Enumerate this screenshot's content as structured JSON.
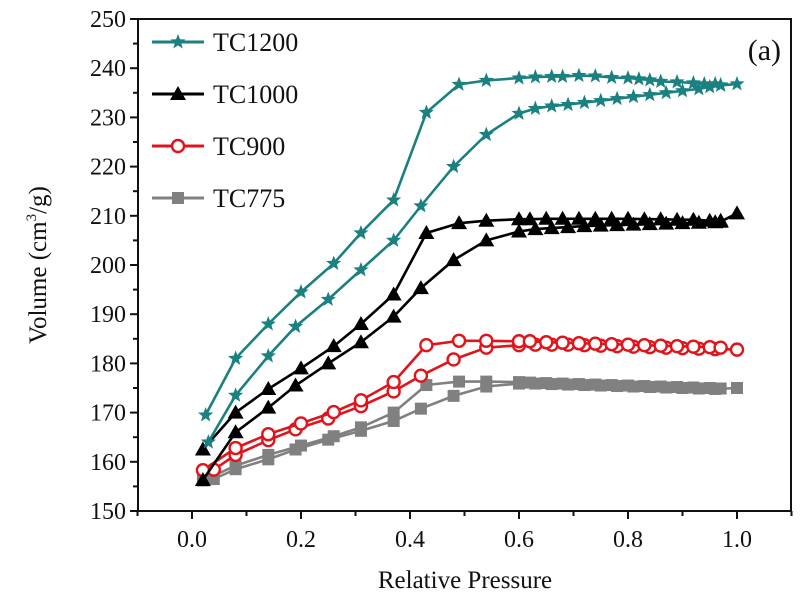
{
  "chart_data": {
    "type": "line",
    "title": "",
    "panel_label": "(a)",
    "xlabel": "Relative Pressure",
    "ylabel": "Volume (cm3/g)",
    "ylabel_parts": {
      "prefix": "Volume (cm",
      "sup": "3",
      "suffix": "/g)"
    },
    "xlim": [
      -0.1,
      1.1
    ],
    "ylim": [
      150,
      250
    ],
    "xticks": [
      0.0,
      0.2,
      0.4,
      0.6,
      0.8,
      1.0
    ],
    "xtick_labels": [
      "0.0",
      "0.2",
      "0.4",
      "0.6",
      "0.8",
      "1.0"
    ],
    "xminor": [
      -0.1,
      0.1,
      0.3,
      0.5,
      0.7,
      0.9,
      1.1
    ],
    "yticks": [
      150,
      160,
      170,
      180,
      190,
      200,
      210,
      220,
      230,
      240,
      250
    ],
    "ytick_labels": [
      "150",
      "160",
      "170",
      "180",
      "190",
      "200",
      "210",
      "220",
      "230",
      "240",
      "250"
    ],
    "yminor": [
      155,
      165,
      175,
      185,
      195,
      205,
      215,
      225,
      235,
      245
    ],
    "grid": false,
    "legend_position": "top-left",
    "series": [
      {
        "name": "TC1200",
        "color": "#1a8080",
        "marker": "star",
        "branches": [
          {
            "x": [
              0.03,
              0.08,
              0.14,
              0.19,
              0.25,
              0.31,
              0.37,
              0.42,
              0.48,
              0.54,
              0.6,
              0.63,
              0.66,
              0.69,
              0.72,
              0.75,
              0.78,
              0.81,
              0.84,
              0.87,
              0.9,
              0.93,
              0.95,
              0.97,
              1.0
            ],
            "y": [
              164,
              173.5,
              181.5,
              187.5,
              193,
              199,
              205,
              212,
              220,
              226.5,
              230.8,
              231.8,
              232.3,
              232.6,
              233,
              233.4,
              233.8,
              234.2,
              234.6,
              235,
              235.4,
              235.8,
              236.2,
              236.5,
              236.8
            ]
          },
          {
            "x": [
              0.025,
              0.08,
              0.14,
              0.2,
              0.26,
              0.31,
              0.37,
              0.43,
              0.49,
              0.54,
              0.6,
              0.63,
              0.66,
              0.68,
              0.71,
              0.74,
              0.77,
              0.8,
              0.82,
              0.84,
              0.86,
              0.89,
              0.92,
              0.94,
              0.96,
              0.97
            ],
            "y": [
              169.5,
              181,
              188,
              194.5,
              200.3,
              206.5,
              213.2,
              231,
              236.7,
              237.5,
              238,
              238.2,
              238.3,
              238.3,
              238.5,
              238.4,
              238.1,
              238,
              237.8,
              237.6,
              237.3,
              237.2,
              237,
              236.8,
              236.8,
              236.6
            ]
          }
        ]
      },
      {
        "name": "TC1000",
        "color": "#000000",
        "marker": "triangle",
        "branches": [
          {
            "x": [
              0.02,
              0.08,
              0.14,
              0.19,
              0.25,
              0.31,
              0.37,
              0.42,
              0.48,
              0.54,
              0.6,
              0.63,
              0.66,
              0.69,
              0.72,
              0.75,
              0.78,
              0.81,
              0.84,
              0.87,
              0.9,
              0.93,
              0.96,
              0.97,
              1.0
            ],
            "y": [
              156.3,
              166,
              171,
              175.5,
              180,
              184.3,
              189.5,
              195.3,
              201,
              205,
              206.8,
              207.3,
              207.5,
              207.7,
              207.9,
              208,
              208.1,
              208.2,
              208.3,
              208.4,
              208.5,
              208.6,
              208.7,
              208.8,
              210.5
            ]
          },
          {
            "x": [
              0.02,
              0.08,
              0.14,
              0.2,
              0.26,
              0.31,
              0.37,
              0.43,
              0.49,
              0.54,
              0.6,
              0.62,
              0.65,
              0.68,
              0.71,
              0.74,
              0.77,
              0.8,
              0.83,
              0.86,
              0.89,
              0.92,
              0.95,
              0.97
            ],
            "y": [
              162.5,
              170,
              174.8,
              179,
              183.5,
              188,
              194,
              206.5,
              208.5,
              209,
              209.3,
              209.3,
              209.4,
              209.4,
              209.4,
              209.4,
              209.4,
              209.4,
              209.3,
              209.3,
              209.2,
              209.2,
              209,
              209
            ]
          }
        ]
      },
      {
        "name": "TC900",
        "color": "#e0141a",
        "marker": "circle-open",
        "branches": [
          {
            "x": [
              0.04,
              0.08,
              0.14,
              0.19,
              0.25,
              0.31,
              0.37,
              0.42,
              0.48,
              0.54,
              0.6,
              0.63,
              0.66,
              0.69,
              0.72,
              0.75,
              0.78,
              0.81,
              0.84,
              0.87,
              0.9,
              0.93,
              0.96,
              1.0
            ],
            "y": [
              158.4,
              161.4,
              164.4,
              166.6,
              168.8,
              171.3,
              174.3,
              177.5,
              180.8,
              183.2,
              183.7,
              183.8,
              183.8,
              183.8,
              183.7,
              183.6,
              183.5,
              183.4,
              183.3,
              183.2,
              183.1,
              183,
              182.9,
              182.8
            ]
          },
          {
            "x": [
              0.02,
              0.08,
              0.14,
              0.2,
              0.26,
              0.31,
              0.37,
              0.43,
              0.49,
              0.54,
              0.6,
              0.62,
              0.65,
              0.68,
              0.71,
              0.74,
              0.77,
              0.8,
              0.83,
              0.86,
              0.89,
              0.92,
              0.95,
              0.97
            ],
            "y": [
              158.3,
              162.8,
              165.6,
              167.8,
              170.1,
              172.5,
              176.2,
              183.7,
              184.6,
              184.6,
              184.5,
              184.5,
              184.3,
              184.2,
              184.1,
              184,
              183.9,
              183.8,
              183.7,
              183.6,
              183.5,
              183.4,
              183.3,
              183.2
            ]
          }
        ]
      },
      {
        "name": "TC775",
        "color": "#808080",
        "marker": "square",
        "branches": [
          {
            "x": [
              0.04,
              0.08,
              0.14,
              0.19,
              0.25,
              0.31,
              0.37,
              0.42,
              0.48,
              0.54,
              0.6,
              0.63,
              0.66,
              0.69,
              0.72,
              0.75,
              0.78,
              0.81,
              0.84,
              0.87,
              0.9,
              0.93,
              0.96,
              1.0
            ],
            "y": [
              156.5,
              158.5,
              160.5,
              162.5,
              164.5,
              166.3,
              168.3,
              170.8,
              173.4,
              175.3,
              175.9,
              175.9,
              175.8,
              175.7,
              175.6,
              175.5,
              175.4,
              175.3,
              175.2,
              175.1,
              175,
              174.9,
              174.8,
              175
            ]
          },
          {
            "x": [
              0.02,
              0.08,
              0.14,
              0.2,
              0.26,
              0.31,
              0.37,
              0.43,
              0.49,
              0.54,
              0.6,
              0.62,
              0.65,
              0.68,
              0.71,
              0.74,
              0.77,
              0.8,
              0.83,
              0.86,
              0.89,
              0.92,
              0.95,
              0.97
            ],
            "y": [
              156.2,
              159.2,
              161.4,
              163.3,
              165.2,
              167,
              170,
              175.6,
              176.3,
              176.3,
              176.2,
              176.1,
              176,
              175.9,
              175.8,
              175.7,
              175.6,
              175.5,
              175.4,
              175.3,
              175.2,
              175.1,
              175,
              174.9
            ]
          }
        ]
      }
    ]
  }
}
